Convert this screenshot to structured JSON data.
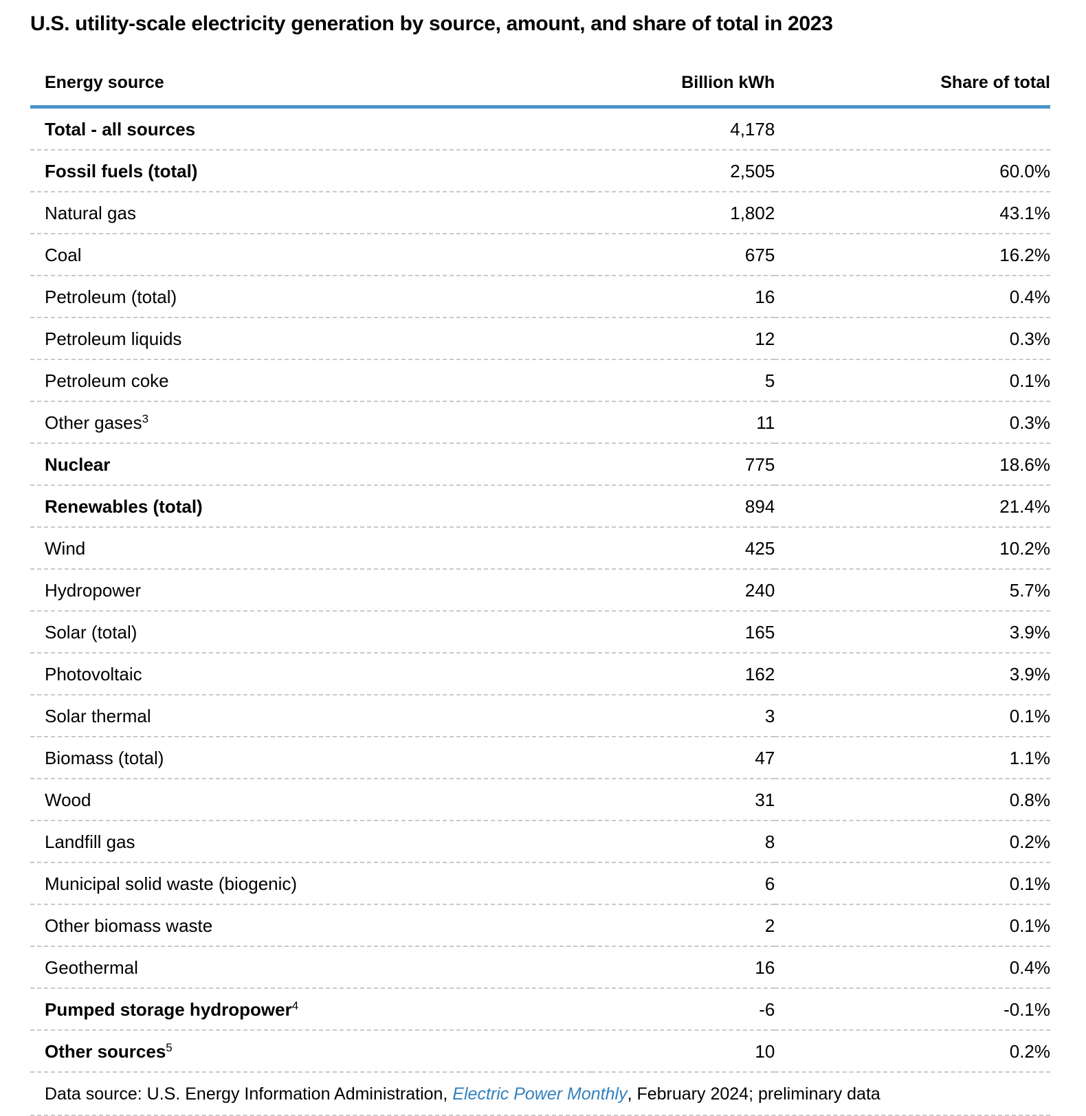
{
  "title": "U.S. utility-scale electricity generation by source, amount, and share of total in 2023",
  "chart_data": {
    "type": "table",
    "title": "U.S. utility-scale electricity generation by source, amount, and share of total in 2023",
    "columns": [
      "Energy source",
      "Billion kWh",
      "Share of total"
    ],
    "rows": [
      {
        "source": "Total - all sources",
        "sup": "",
        "bold": true,
        "kwh": "4,178",
        "share": ""
      },
      {
        "source": "Fossil fuels (total)",
        "sup": "",
        "bold": true,
        "kwh": "2,505",
        "share": "60.0%"
      },
      {
        "source": "Natural gas",
        "sup": "",
        "bold": false,
        "kwh": "1,802",
        "share": "43.1%"
      },
      {
        "source": "Coal",
        "sup": "",
        "bold": false,
        "kwh": "675",
        "share": "16.2%"
      },
      {
        "source": "Petroleum (total)",
        "sup": "",
        "bold": false,
        "kwh": "16",
        "share": "0.4%"
      },
      {
        "source": "Petroleum liquids",
        "sup": "",
        "bold": false,
        "kwh": "12",
        "share": "0.3%"
      },
      {
        "source": "Petroleum coke",
        "sup": "",
        "bold": false,
        "kwh": "5",
        "share": "0.1%"
      },
      {
        "source": "Other gases",
        "sup": "3",
        "bold": false,
        "kwh": "11",
        "share": "0.3%"
      },
      {
        "source": "Nuclear",
        "sup": "",
        "bold": true,
        "kwh": "775",
        "share": "18.6%"
      },
      {
        "source": "Renewables (total)",
        "sup": "",
        "bold": true,
        "kwh": "894",
        "share": "21.4%"
      },
      {
        "source": "Wind",
        "sup": "",
        "bold": false,
        "kwh": "425",
        "share": "10.2%"
      },
      {
        "source": "Hydropower",
        "sup": "",
        "bold": false,
        "kwh": "240",
        "share": "5.7%"
      },
      {
        "source": "Solar (total)",
        "sup": "",
        "bold": false,
        "kwh": "165",
        "share": "3.9%"
      },
      {
        "source": "Photovoltaic",
        "sup": "",
        "bold": false,
        "kwh": "162",
        "share": "3.9%"
      },
      {
        "source": "Solar thermal",
        "sup": "",
        "bold": false,
        "kwh": "3",
        "share": "0.1%"
      },
      {
        "source": "Biomass (total)",
        "sup": "",
        "bold": false,
        "kwh": "47",
        "share": "1.1%"
      },
      {
        "source": "Wood",
        "sup": "",
        "bold": false,
        "kwh": "31",
        "share": "0.8%"
      },
      {
        "source": "Landfill gas",
        "sup": "",
        "bold": false,
        "kwh": "8",
        "share": "0.2%"
      },
      {
        "source": "Municipal solid waste (biogenic)",
        "sup": "",
        "bold": false,
        "kwh": "6",
        "share": "0.1%"
      },
      {
        "source": "Other biomass waste",
        "sup": "",
        "bold": false,
        "kwh": "2",
        "share": "0.1%"
      },
      {
        "source": "Geothermal",
        "sup": "",
        "bold": false,
        "kwh": "16",
        "share": "0.4%"
      },
      {
        "source": "Pumped storage hydropower",
        "sup": "4",
        "bold": true,
        "kwh": "-6",
        "share": "-0.1%"
      },
      {
        "source": "Other sources",
        "sup": "5",
        "bold": true,
        "kwh": "10",
        "share": "0.2%"
      }
    ]
  },
  "footer": {
    "prefix": "Data source: U.S. Energy Information Administration, ",
    "link_text": "Electric Power Monthly",
    "suffix": ", February 2024; preliminary data"
  },
  "colors": {
    "header_rule_blue": "#4a94c9",
    "link_blue": "#3380bd",
    "row_divider_gray": "#c9c9c9",
    "text_black": "#000000"
  }
}
